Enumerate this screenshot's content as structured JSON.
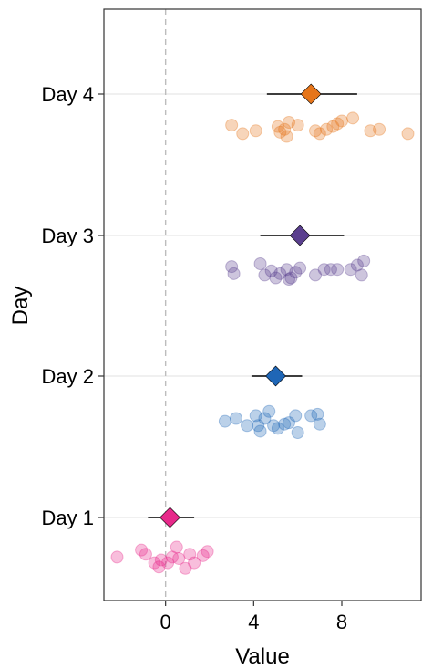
{
  "chart_data": {
    "type": "scatter",
    "title": "",
    "xlabel": "Value",
    "ylabel": "Day",
    "xlim": [
      -2.8,
      11.6
    ],
    "x_ticks": [
      0,
      4,
      8
    ],
    "grid": "horizontal major lines only",
    "reference_line": {
      "x": 0,
      "style": "dashed",
      "color": "#bdbdbd"
    },
    "legend": "none",
    "categories": [
      "Day 1",
      "Day 2",
      "Day 3",
      "Day 4"
    ],
    "series": [
      {
        "category": "Day 1",
        "color": "#e7298a",
        "mean": 0.2,
        "error_low": -0.8,
        "error_high": 1.3,
        "points": [
          {
            "x": -2.2,
            "j": 0.02
          },
          {
            "x": -1.1,
            "j": 0.07
          },
          {
            "x": -0.9,
            "j": 0.04
          },
          {
            "x": -0.5,
            "j": -0.02
          },
          {
            "x": -0.3,
            "j": -0.05
          },
          {
            "x": -0.2,
            "j": 0.0
          },
          {
            "x": 0.1,
            "j": -0.02
          },
          {
            "x": 0.3,
            "j": 0.02
          },
          {
            "x": 0.5,
            "j": 0.09
          },
          {
            "x": 0.6,
            "j": 0.01
          },
          {
            "x": 0.9,
            "j": -0.06
          },
          {
            "x": 1.1,
            "j": 0.04
          },
          {
            "x": 1.3,
            "j": -0.02
          },
          {
            "x": 1.7,
            "j": 0.03
          },
          {
            "x": 1.9,
            "j": 0.06
          }
        ]
      },
      {
        "category": "Day 2",
        "color": "#1f66b6",
        "mean": 5.0,
        "error_low": 3.9,
        "error_high": 6.2,
        "points": [
          {
            "x": 2.7,
            "j": -0.02
          },
          {
            "x": 3.2,
            "j": 0.0
          },
          {
            "x": 3.7,
            "j": -0.05
          },
          {
            "x": 4.1,
            "j": 0.02
          },
          {
            "x": 4.2,
            "j": -0.05
          },
          {
            "x": 4.3,
            "j": -0.09
          },
          {
            "x": 4.5,
            "j": 0.0
          },
          {
            "x": 4.7,
            "j": 0.05
          },
          {
            "x": 4.9,
            "j": -0.05
          },
          {
            "x": 5.1,
            "j": -0.07
          },
          {
            "x": 5.4,
            "j": -0.04
          },
          {
            "x": 5.6,
            "j": -0.03
          },
          {
            "x": 5.9,
            "j": 0.02
          },
          {
            "x": 6.0,
            "j": -0.1
          },
          {
            "x": 6.6,
            "j": 0.02
          },
          {
            "x": 7.0,
            "j": -0.04
          },
          {
            "x": 6.9,
            "j": 0.03
          }
        ]
      },
      {
        "category": "Day 3",
        "color": "#5a3f8e",
        "mean": 6.1,
        "error_low": 4.3,
        "error_high": 8.1,
        "points": [
          {
            "x": 3.0,
            "j": 0.08
          },
          {
            "x": 3.1,
            "j": 0.03
          },
          {
            "x": 4.3,
            "j": 0.1
          },
          {
            "x": 4.5,
            "j": 0.02
          },
          {
            "x": 4.8,
            "j": 0.05
          },
          {
            "x": 5.0,
            "j": 0.0
          },
          {
            "x": 5.2,
            "j": 0.03
          },
          {
            "x": 5.5,
            "j": 0.06
          },
          {
            "x": 5.7,
            "j": 0.0
          },
          {
            "x": 5.9,
            "j": 0.04
          },
          {
            "x": 6.1,
            "j": 0.07
          },
          {
            "x": 6.8,
            "j": 0.02
          },
          {
            "x": 7.2,
            "j": 0.06
          },
          {
            "x": 7.5,
            "j": 0.06
          },
          {
            "x": 7.8,
            "j": 0.06
          },
          {
            "x": 8.4,
            "j": 0.06
          },
          {
            "x": 8.7,
            "j": 0.09
          },
          {
            "x": 8.9,
            "j": 0.02
          },
          {
            "x": 9.0,
            "j": 0.12
          },
          {
            "x": 5.6,
            "j": -0.01
          }
        ]
      },
      {
        "category": "Day 4",
        "color": "#e6751a",
        "mean": 6.6,
        "error_low": 4.6,
        "error_high": 8.7,
        "points": [
          {
            "x": 3.0,
            "j": 0.08
          },
          {
            "x": 3.5,
            "j": 0.02
          },
          {
            "x": 4.1,
            "j": 0.04
          },
          {
            "x": 5.1,
            "j": 0.07
          },
          {
            "x": 5.2,
            "j": 0.03
          },
          {
            "x": 5.4,
            "j": 0.05
          },
          {
            "x": 5.6,
            "j": 0.1
          },
          {
            "x": 6.0,
            "j": 0.08
          },
          {
            "x": 6.8,
            "j": 0.04
          },
          {
            "x": 7.0,
            "j": 0.02
          },
          {
            "x": 7.3,
            "j": 0.05
          },
          {
            "x": 7.6,
            "j": 0.07
          },
          {
            "x": 7.8,
            "j": 0.09
          },
          {
            "x": 8.0,
            "j": 0.11
          },
          {
            "x": 8.5,
            "j": 0.13
          },
          {
            "x": 9.3,
            "j": 0.04
          },
          {
            "x": 9.7,
            "j": 0.05
          },
          {
            "x": 11.0,
            "j": 0.02
          },
          {
            "x": 5.5,
            "j": 0.0
          }
        ]
      }
    ]
  }
}
